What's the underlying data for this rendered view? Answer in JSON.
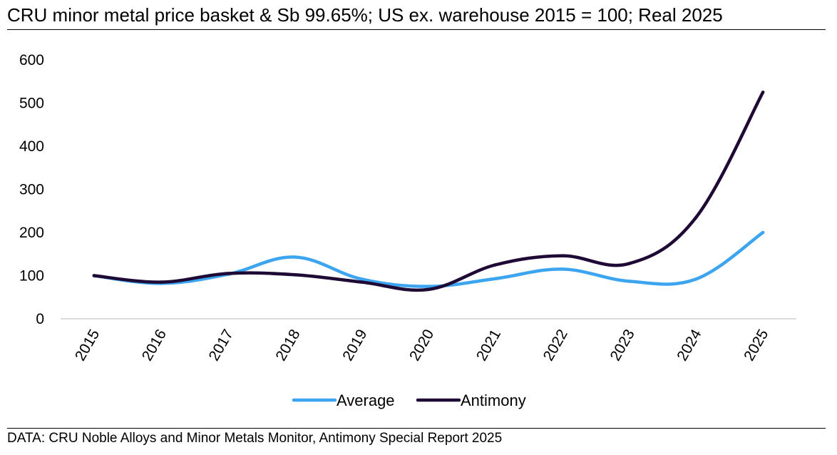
{
  "chart_data": {
    "type": "line",
    "title": "CRU minor metal price basket & Sb 99.65%; US ex. warehouse 2015 = 100; Real 2025",
    "xlabel": "",
    "ylabel": "",
    "categories": [
      "2015",
      "2016",
      "2017",
      "2018",
      "2019",
      "2020",
      "2021",
      "2022",
      "2023",
      "2024",
      "2025"
    ],
    "ylim": [
      0,
      600
    ],
    "yticks": [
      "0",
      "100",
      "200",
      "300",
      "400",
      "500",
      "600"
    ],
    "series": [
      {
        "name": "Average",
        "color": "#3da5f0",
        "values": [
          100,
          82,
          103,
          143,
          92,
          75,
          93,
          115,
          87,
          92,
          200
        ]
      },
      {
        "name": "Antimony",
        "color": "#1e0a35",
        "values": [
          100,
          85,
          105,
          102,
          85,
          68,
          125,
          146,
          128,
          235,
          525
        ]
      }
    ],
    "legend_position": "bottom",
    "grid": false
  },
  "source_note": "DATA: CRU Noble Alloys and Minor Metals Monitor, Antimony Special Report 2025"
}
